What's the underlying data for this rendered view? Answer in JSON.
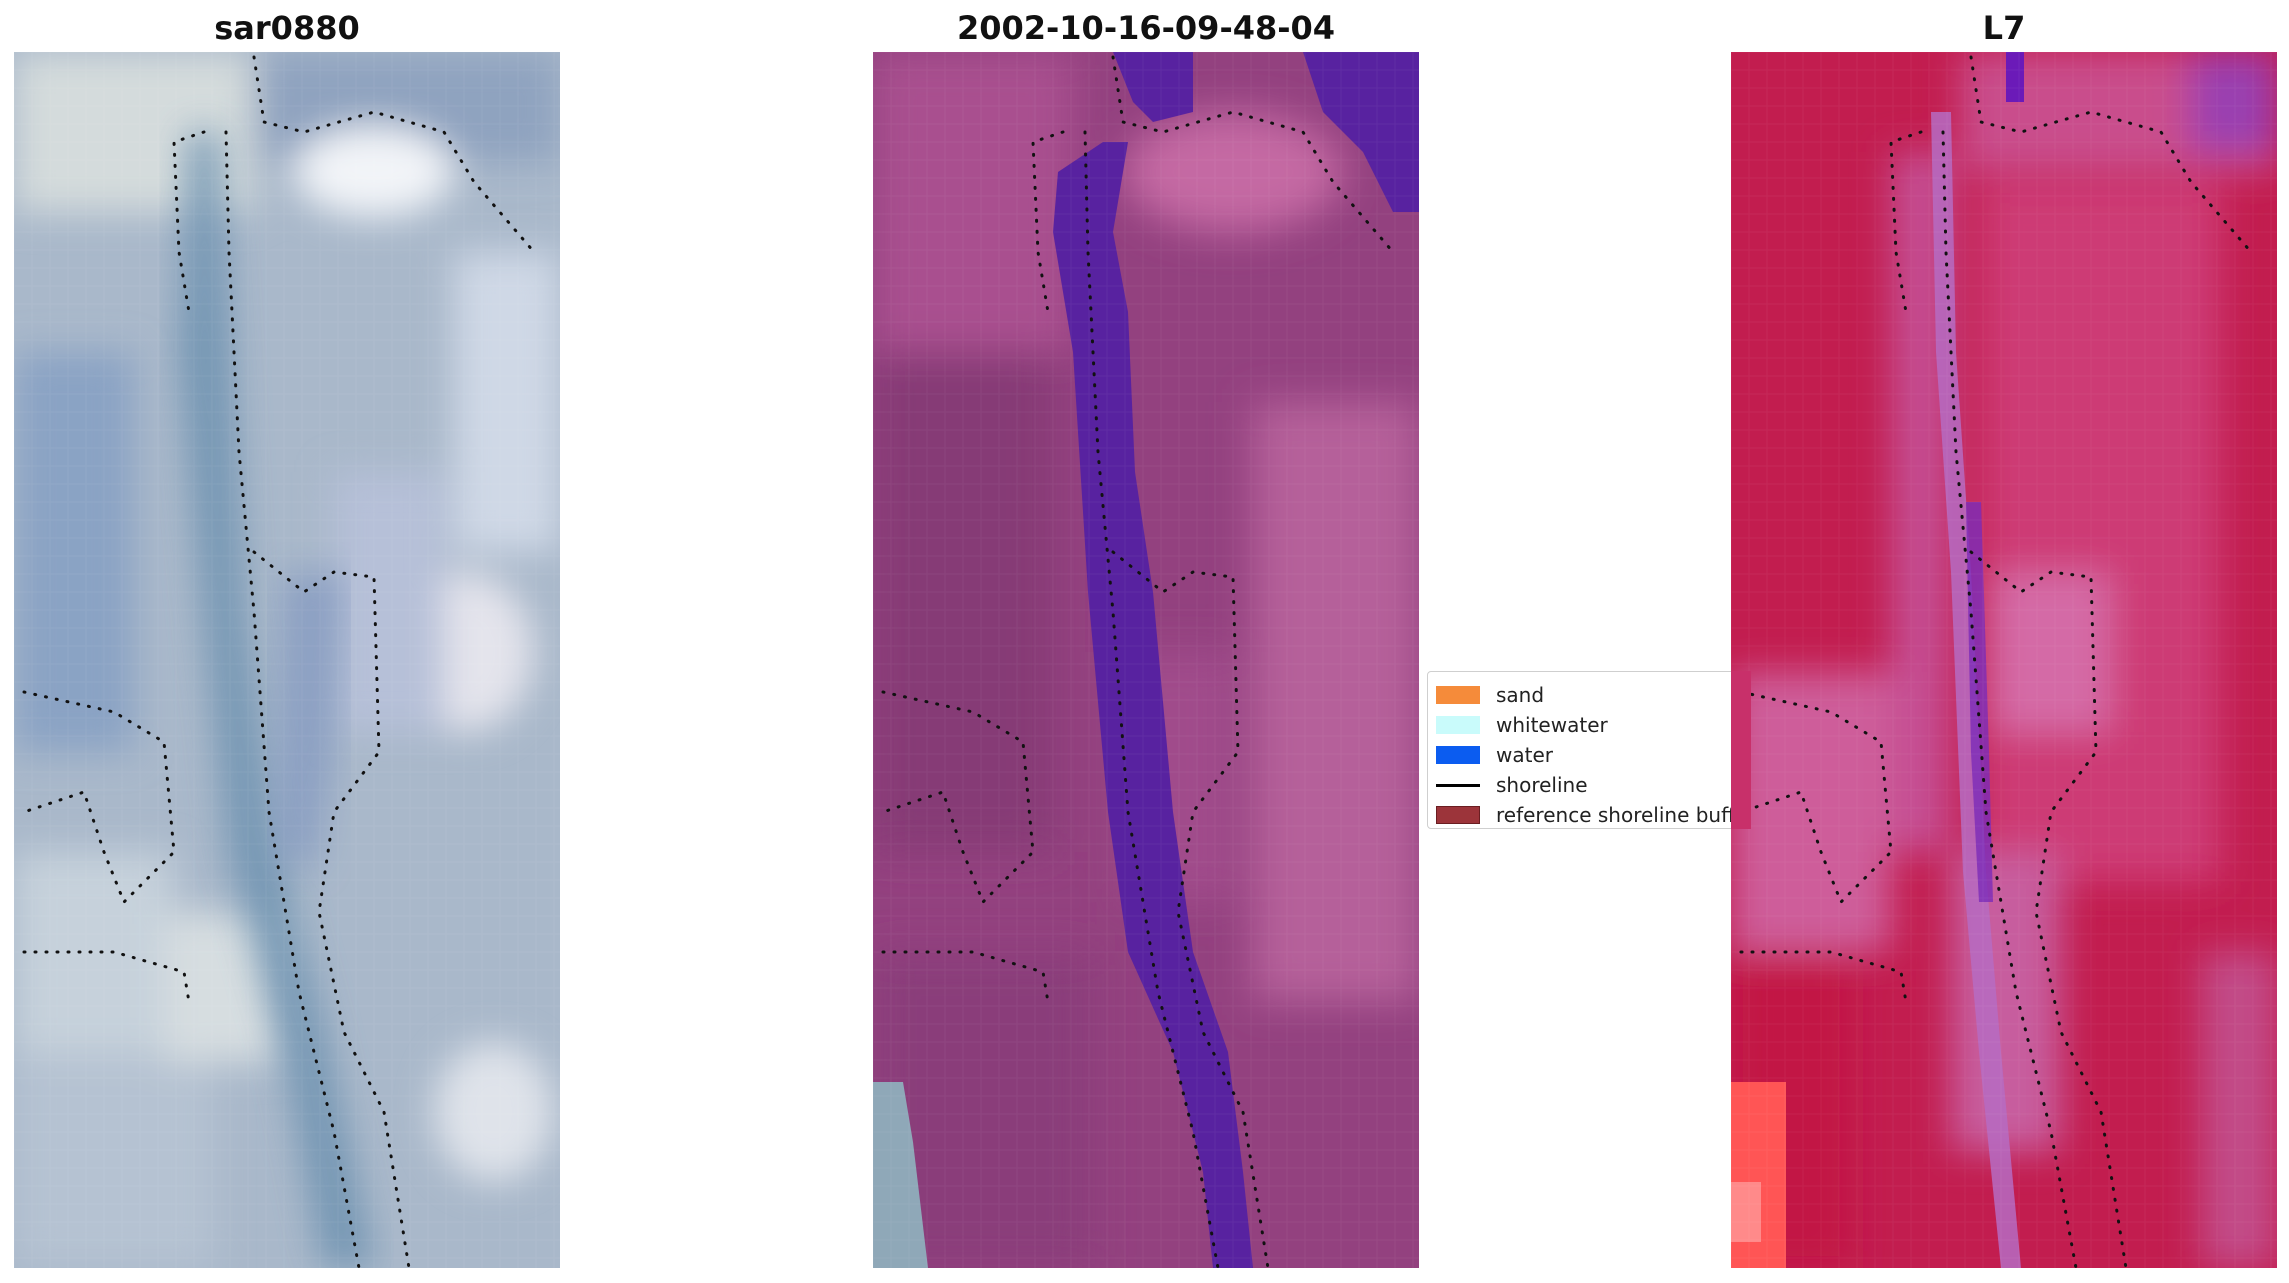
{
  "panels": [
    {
      "title": "sar0880",
      "image": "rgb"
    },
    {
      "title": "2002-10-16-09-48-04",
      "image": "classified"
    },
    {
      "title": "L7",
      "image": "index"
    }
  ],
  "legend": {
    "items": [
      {
        "label": "sand",
        "color": "#f58b3a",
        "kind": "patch"
      },
      {
        "label": "whitewater",
        "color": "#c9fbfb",
        "kind": "patch"
      },
      {
        "label": "water",
        "color": "#0b5cf0",
        "kind": "patch"
      },
      {
        "label": "shoreline",
        "color": "#000000",
        "kind": "line"
      },
      {
        "label": "reference shoreline buffer",
        "color": "#9c343a",
        "kind": "patch"
      }
    ]
  },
  "colors": {
    "rgb_base": "#a7b7c9",
    "classified_base": "#93417f",
    "classified_water": "#5822a0",
    "index_base": "#c21d4f",
    "index_light": "#d46aa6",
    "index_violet": "#7c2cb8",
    "index_bright": "#ff4444"
  }
}
